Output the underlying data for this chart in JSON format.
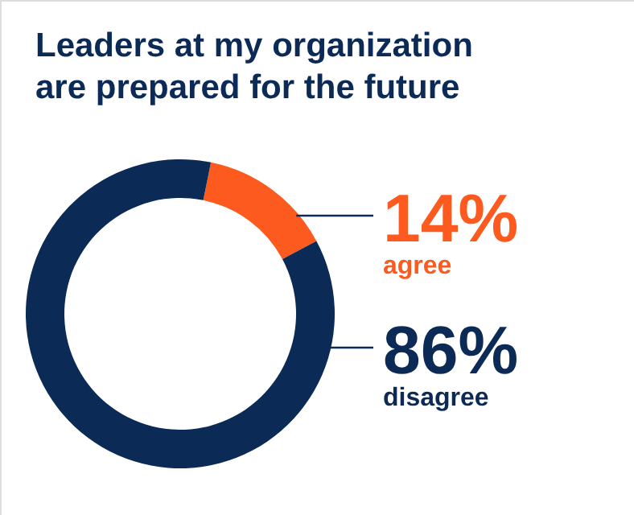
{
  "chart_data": {
    "type": "donut",
    "title": "Leaders at my organization are prepared for the future",
    "categories": [
      "agree",
      "disagree"
    ],
    "values": [
      14,
      86
    ],
    "colors": [
      "#fc5a1e",
      "#0b2a55"
    ],
    "value_labels": [
      "14%",
      "86%"
    ]
  }
}
